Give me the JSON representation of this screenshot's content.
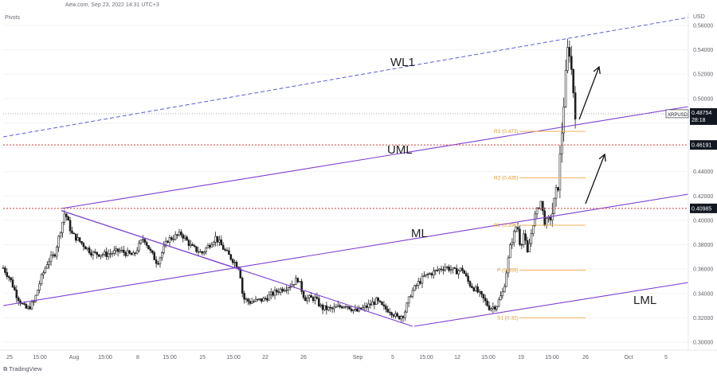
{
  "header": {
    "source_text": "Aew.com, Sep 23, 2022 14:31 UTC+3",
    "indicator": "Pivots",
    "platform": "TradingView",
    "currency": "USD"
  },
  "colors": {
    "up_candle": "#1f1f1f",
    "down_candle": "#1f1f1f",
    "channel_line": "#7b3fd3",
    "warning_line": "#5b5fd6",
    "horizontal_level": "#d63b3b",
    "pivot_line": "#f5b15a",
    "last_price_bg": "#131722",
    "level_bg": "#131722"
  },
  "chart_data": {
    "type": "candlestick",
    "symbol": "XRPUSD",
    "last_price": "0.48754",
    "countdown": "28:18",
    "ylim": [
      0.3,
      0.56
    ],
    "y_ticks": [
      "0.56000",
      "0.54000",
      "0.52000",
      "0.50000",
      "0.48000",
      "0.46000",
      "0.44000",
      "0.42000",
      "0.40000",
      "0.38000",
      "0.36000",
      "0.34000",
      "0.32000",
      "0.30000"
    ],
    "x_ticks": [
      "25",
      "15:00",
      "Aug",
      "15:00",
      "8",
      "15:00",
      "15",
      "15:00",
      "22",
      "26",
      "Sep",
      "5",
      "15:00",
      "12",
      "15:00",
      "19",
      "15:00",
      "26",
      "Oct",
      "5"
    ],
    "levels": [
      {
        "label": "0.46191",
        "value": 0.46191
      },
      {
        "label": "0.40985",
        "value": 0.40985
      }
    ],
    "pivots": [
      {
        "label": "R1 (0.473)",
        "value": 0.473
      },
      {
        "label": "R2 (0.435)",
        "value": 0.435
      },
      {
        "label": "R1 (0.396)",
        "value": 0.396
      },
      {
        "label": "P (0.359)",
        "value": 0.359
      },
      {
        "label": "S1 (0.32)",
        "value": 0.32
      }
    ],
    "annotations": [
      "WL1",
      "UML",
      "ML",
      "LML"
    ],
    "price_path": [
      [
        0.0,
        0.361
      ],
      [
        0.01,
        0.352
      ],
      [
        0.02,
        0.338
      ],
      [
        0.03,
        0.329
      ],
      [
        0.035,
        0.327
      ],
      [
        0.045,
        0.333
      ],
      [
        0.055,
        0.352
      ],
      [
        0.065,
        0.366
      ],
      [
        0.075,
        0.372
      ],
      [
        0.085,
        0.395
      ],
      [
        0.09,
        0.407
      ],
      [
        0.1,
        0.389
      ],
      [
        0.115,
        0.381
      ],
      [
        0.13,
        0.373
      ],
      [
        0.15,
        0.372
      ],
      [
        0.17,
        0.375
      ],
      [
        0.19,
        0.371
      ],
      [
        0.205,
        0.386
      ],
      [
        0.215,
        0.374
      ],
      [
        0.225,
        0.365
      ],
      [
        0.24,
        0.384
      ],
      [
        0.26,
        0.389
      ],
      [
        0.275,
        0.378
      ],
      [
        0.29,
        0.373
      ],
      [
        0.31,
        0.386
      ],
      [
        0.325,
        0.374
      ],
      [
        0.345,
        0.361
      ],
      [
        0.35,
        0.336
      ],
      [
        0.36,
        0.333
      ],
      [
        0.38,
        0.335
      ],
      [
        0.4,
        0.342
      ],
      [
        0.42,
        0.347
      ],
      [
        0.43,
        0.352
      ],
      [
        0.44,
        0.336
      ],
      [
        0.455,
        0.336
      ],
      [
        0.465,
        0.328
      ],
      [
        0.48,
        0.327
      ],
      [
        0.5,
        0.331
      ],
      [
        0.515,
        0.325
      ],
      [
        0.53,
        0.329
      ],
      [
        0.545,
        0.334
      ],
      [
        0.555,
        0.328
      ],
      [
        0.565,
        0.326
      ],
      [
        0.575,
        0.32
      ],
      [
        0.585,
        0.323
      ],
      [
        0.595,
        0.34
      ],
      [
        0.605,
        0.348
      ],
      [
        0.615,
        0.354
      ],
      [
        0.63,
        0.358
      ],
      [
        0.645,
        0.362
      ],
      [
        0.66,
        0.358
      ],
      [
        0.67,
        0.36
      ],
      [
        0.68,
        0.348
      ],
      [
        0.69,
        0.343
      ],
      [
        0.7,
        0.336
      ],
      [
        0.71,
        0.328
      ],
      [
        0.72,
        0.33
      ],
      [
        0.73,
        0.342
      ],
      [
        0.74,
        0.378
      ],
      [
        0.75,
        0.398
      ],
      [
        0.755,
        0.378
      ],
      [
        0.76,
        0.39
      ],
      [
        0.765,
        0.372
      ],
      [
        0.775,
        0.402
      ],
      [
        0.785,
        0.416
      ],
      [
        0.79,
        0.398
      ],
      [
        0.8,
        0.402
      ],
      [
        0.81,
        0.43
      ],
      [
        0.815,
        0.47
      ],
      [
        0.82,
        0.51
      ],
      [
        0.825,
        0.548
      ],
      [
        0.83,
        0.52
      ],
      [
        0.835,
        0.489
      ]
    ],
    "pitchfork": {
      "pivot_A": [
        0.085,
        0.408
      ],
      "pivot_B": [
        0.35,
        0.36
      ],
      "pivot_C": [
        0.6,
        0.314
      ]
    }
  }
}
